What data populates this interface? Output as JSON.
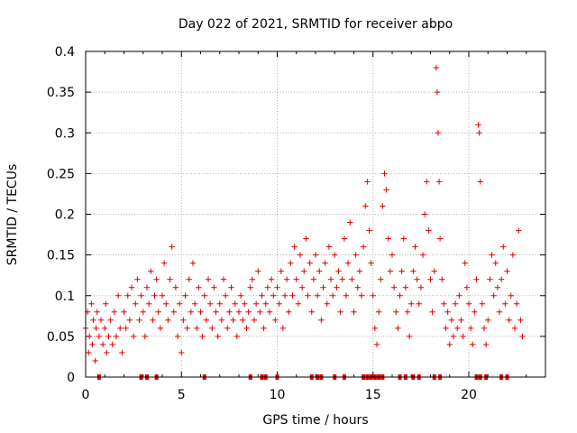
{
  "chart_data": {
    "type": "scatter",
    "title": "Day 022 of 2021, SRMTID for receiver abpo",
    "xlabel": "GPS time / hours",
    "ylabel": "SRMTID / TECUs",
    "xlim": [
      0,
      24
    ],
    "ylim": [
      0,
      0.4
    ],
    "x_ticks": [
      0,
      5,
      10,
      15,
      20
    ],
    "x_tick_labels": [
      "0",
      "5",
      "10",
      "15",
      "20"
    ],
    "y_ticks": [
      0,
      0.05,
      0.1,
      0.15,
      0.2,
      0.25,
      0.3,
      0.35,
      0.4
    ],
    "y_tick_labels": [
      "0",
      "0.05",
      "0.1",
      "0.15",
      "0.2",
      "0.25",
      "0.3",
      "0.35",
      "0.4"
    ],
    "grid": true,
    "marker": "+",
    "color": "#dd0000",
    "series": [
      {
        "name": "SRMTID",
        "points": [
          [
            0.0,
            0.06
          ],
          [
            0.1,
            0.08
          ],
          [
            0.15,
            0.03
          ],
          [
            0.2,
            0.05
          ],
          [
            0.3,
            0.09
          ],
          [
            0.35,
            0.04
          ],
          [
            0.4,
            0.07
          ],
          [
            0.5,
            0.02
          ],
          [
            0.55,
            0.06
          ],
          [
            0.6,
            0.08
          ],
          [
            0.7,
            0.05
          ],
          [
            0.8,
            0.07
          ],
          [
            0.9,
            0.04
          ],
          [
            1.0,
            0.06
          ],
          [
            1.05,
            0.09
          ],
          [
            1.1,
            0.03
          ],
          [
            1.2,
            0.05
          ],
          [
            1.3,
            0.07
          ],
          [
            1.4,
            0.04
          ],
          [
            1.5,
            0.08
          ],
          [
            1.6,
            0.05
          ],
          [
            1.7,
            0.1
          ],
          [
            1.8,
            0.06
          ],
          [
            1.9,
            0.03
          ],
          [
            2.0,
            0.08
          ],
          [
            2.1,
            0.06
          ],
          [
            2.2,
            0.1
          ],
          [
            2.3,
            0.07
          ],
          [
            2.4,
            0.11
          ],
          [
            2.5,
            0.05
          ],
          [
            2.6,
            0.09
          ],
          [
            2.7,
            0.12
          ],
          [
            2.8,
            0.07
          ],
          [
            2.9,
            0.1
          ],
          [
            3.0,
            0.08
          ],
          [
            3.1,
            0.05
          ],
          [
            3.2,
            0.11
          ],
          [
            3.3,
            0.09
          ],
          [
            3.4,
            0.13
          ],
          [
            3.5,
            0.07
          ],
          [
            3.6,
            0.1
          ],
          [
            3.7,
            0.12
          ],
          [
            3.8,
            0.08
          ],
          [
            3.9,
            0.06
          ],
          [
            4.0,
            0.1
          ],
          [
            4.1,
            0.14
          ],
          [
            4.2,
            0.09
          ],
          [
            4.3,
            0.07
          ],
          [
            4.4,
            0.12
          ],
          [
            4.5,
            0.16
          ],
          [
            4.6,
            0.08
          ],
          [
            4.7,
            0.11
          ],
          [
            4.8,
            0.05
          ],
          [
            4.9,
            0.09
          ],
          [
            5.0,
            0.03
          ],
          [
            5.1,
            0.07
          ],
          [
            5.2,
            0.1
          ],
          [
            5.3,
            0.06
          ],
          [
            5.4,
            0.12
          ],
          [
            5.5,
            0.08
          ],
          [
            5.6,
            0.14
          ],
          [
            5.7,
            0.09
          ],
          [
            5.8,
            0.06
          ],
          [
            5.9,
            0.11
          ],
          [
            6.0,
            0.08
          ],
          [
            6.1,
            0.05
          ],
          [
            6.2,
            0.1
          ],
          [
            6.3,
            0.07
          ],
          [
            6.4,
            0.12
          ],
          [
            6.5,
            0.09
          ],
          [
            6.6,
            0.06
          ],
          [
            6.7,
            0.11
          ],
          [
            6.8,
            0.08
          ],
          [
            6.9,
            0.05
          ],
          [
            7.0,
            0.09
          ],
          [
            7.1,
            0.07
          ],
          [
            7.2,
            0.12
          ],
          [
            7.3,
            0.1
          ],
          [
            7.4,
            0.06
          ],
          [
            7.5,
            0.08
          ],
          [
            7.6,
            0.11
          ],
          [
            7.7,
            0.07
          ],
          [
            7.8,
            0.09
          ],
          [
            7.9,
            0.05
          ],
          [
            8.0,
            0.08
          ],
          [
            8.1,
            0.1
          ],
          [
            8.2,
            0.07
          ],
          [
            8.3,
            0.09
          ],
          [
            8.4,
            0.06
          ],
          [
            8.5,
            0.08
          ],
          [
            8.6,
            0.11
          ],
          [
            8.7,
            0.12
          ],
          [
            8.8,
            0.07
          ],
          [
            8.9,
            0.09
          ],
          [
            9.0,
            0.13
          ],
          [
            9.1,
            0.08
          ],
          [
            9.2,
            0.1
          ],
          [
            9.3,
            0.06
          ],
          [
            9.4,
            0.09
          ],
          [
            9.5,
            0.11
          ],
          [
            9.6,
            0.08
          ],
          [
            9.7,
            0.12
          ],
          [
            9.8,
            0.1
          ],
          [
            9.9,
            0.07
          ],
          [
            10.0,
            0.11
          ],
          [
            10.1,
            0.09
          ],
          [
            10.2,
            0.13
          ],
          [
            10.3,
            0.06
          ],
          [
            10.4,
            0.1
          ],
          [
            10.5,
            0.12
          ],
          [
            10.6,
            0.08
          ],
          [
            10.7,
            0.14
          ],
          [
            10.8,
            0.1
          ],
          [
            10.9,
            0.16
          ],
          [
            11.0,
            0.12
          ],
          [
            11.1,
            0.09
          ],
          [
            11.2,
            0.15
          ],
          [
            11.3,
            0.11
          ],
          [
            11.4,
            0.13
          ],
          [
            11.5,
            0.17
          ],
          [
            11.6,
            0.1
          ],
          [
            11.7,
            0.14
          ],
          [
            11.8,
            0.08
          ],
          [
            11.9,
            0.12
          ],
          [
            12.0,
            0.15
          ],
          [
            12.1,
            0.1
          ],
          [
            12.2,
            0.13
          ],
          [
            12.3,
            0.07
          ],
          [
            12.4,
            0.11
          ],
          [
            12.5,
            0.14
          ],
          [
            12.6,
            0.09
          ],
          [
            12.7,
            0.16
          ],
          [
            12.8,
            0.12
          ],
          [
            12.9,
            0.1
          ],
          [
            13.0,
            0.15
          ],
          [
            13.1,
            0.11
          ],
          [
            13.2,
            0.13
          ],
          [
            13.3,
            0.08
          ],
          [
            13.4,
            0.12
          ],
          [
            13.5,
            0.17
          ],
          [
            13.6,
            0.1
          ],
          [
            13.7,
            0.14
          ],
          [
            13.8,
            0.19
          ],
          [
            13.9,
            0.12
          ],
          [
            14.0,
            0.08
          ],
          [
            14.1,
            0.15
          ],
          [
            14.2,
            0.11
          ],
          [
            14.3,
            0.13
          ],
          [
            14.4,
            0.1
          ],
          [
            14.5,
            0.16
          ],
          [
            14.6,
            0.21
          ],
          [
            14.7,
            0.24
          ],
          [
            14.8,
            0.18
          ],
          [
            14.9,
            0.14
          ],
          [
            15.0,
            0.1
          ],
          [
            15.1,
            0.06
          ],
          [
            15.2,
            0.04
          ],
          [
            15.3,
            0.08
          ],
          [
            15.4,
            0.12
          ],
          [
            15.5,
            0.21
          ],
          [
            15.6,
            0.25
          ],
          [
            15.7,
            0.23
          ],
          [
            15.8,
            0.17
          ],
          [
            15.9,
            0.13
          ],
          [
            16.0,
            0.15
          ],
          [
            16.1,
            0.11
          ],
          [
            16.2,
            0.08
          ],
          [
            16.3,
            0.06
          ],
          [
            16.4,
            0.1
          ],
          [
            16.5,
            0.13
          ],
          [
            16.6,
            0.17
          ],
          [
            16.7,
            0.11
          ],
          [
            16.8,
            0.08
          ],
          [
            16.9,
            0.05
          ],
          [
            17.0,
            0.09
          ],
          [
            17.1,
            0.13
          ],
          [
            17.2,
            0.16
          ],
          [
            17.3,
            0.12
          ],
          [
            17.4,
            0.09
          ],
          [
            17.5,
            0.11
          ],
          [
            17.6,
            0.15
          ],
          [
            17.7,
            0.2
          ],
          [
            17.8,
            0.24
          ],
          [
            17.9,
            0.18
          ],
          [
            18.0,
            0.12
          ],
          [
            18.1,
            0.08
          ],
          [
            18.2,
            0.13
          ],
          [
            18.3,
            0.38
          ],
          [
            18.35,
            0.35
          ],
          [
            18.4,
            0.3
          ],
          [
            18.45,
            0.24
          ],
          [
            18.5,
            0.17
          ],
          [
            18.6,
            0.12
          ],
          [
            18.7,
            0.09
          ],
          [
            18.8,
            0.06
          ],
          [
            18.9,
            0.08
          ],
          [
            19.0,
            0.04
          ],
          [
            19.1,
            0.07
          ],
          [
            19.2,
            0.05
          ],
          [
            19.3,
            0.09
          ],
          [
            19.4,
            0.06
          ],
          [
            19.5,
            0.1
          ],
          [
            19.6,
            0.07
          ],
          [
            19.7,
            0.05
          ],
          [
            19.8,
            0.14
          ],
          [
            19.9,
            0.11
          ],
          [
            20.0,
            0.09
          ],
          [
            20.1,
            0.06
          ],
          [
            20.2,
            0.04
          ],
          [
            20.3,
            0.08
          ],
          [
            20.4,
            0.12
          ],
          [
            20.5,
            0.31
          ],
          [
            20.55,
            0.3
          ],
          [
            20.6,
            0.24
          ],
          [
            20.7,
            0.09
          ],
          [
            20.8,
            0.06
          ],
          [
            20.9,
            0.04
          ],
          [
            21.0,
            0.07
          ],
          [
            21.1,
            0.12
          ],
          [
            21.2,
            0.15
          ],
          [
            21.3,
            0.1
          ],
          [
            21.4,
            0.14
          ],
          [
            21.5,
            0.11
          ],
          [
            21.6,
            0.08
          ],
          [
            21.7,
            0.12
          ],
          [
            21.8,
            0.16
          ],
          [
            21.9,
            0.09
          ],
          [
            22.0,
            0.13
          ],
          [
            22.1,
            0.07
          ],
          [
            22.2,
            0.1
          ],
          [
            22.3,
            0.15
          ],
          [
            22.4,
            0.06
          ],
          [
            22.5,
            0.09
          ],
          [
            22.6,
            0.18
          ],
          [
            22.7,
            0.07
          ],
          [
            22.8,
            0.05
          ]
        ]
      }
    ],
    "zero_markers_x": [
      0.7,
      2.9,
      3.2,
      3.7,
      6.2,
      8.6,
      9.2,
      9.4,
      10.0,
      11.8,
      12.1,
      12.3,
      13.0,
      13.5,
      14.5,
      14.7,
      14.9,
      15.1,
      15.3,
      15.5,
      16.4,
      16.7,
      17.1,
      17.4,
      18.2,
      18.5,
      20.4,
      20.6,
      20.9,
      21.7,
      22.0
    ]
  }
}
